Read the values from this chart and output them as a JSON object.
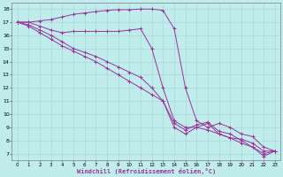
{
  "xlabel": "Windchill (Refroidissement éolien,°C)",
  "bg_color": "#c0ecec",
  "grid_color": "#a8d8d8",
  "line_color": "#993399",
  "spine_color": "#7a7a9a",
  "xlim": [
    -0.5,
    23.5
  ],
  "ylim": [
    6.5,
    18.5
  ],
  "xticks": [
    0,
    1,
    2,
    3,
    4,
    5,
    6,
    7,
    8,
    9,
    10,
    11,
    12,
    13,
    14,
    15,
    16,
    17,
    18,
    19,
    20,
    21,
    22,
    23
  ],
  "yticks": [
    7,
    8,
    9,
    10,
    11,
    12,
    13,
    14,
    15,
    16,
    17,
    18
  ],
  "lines": [
    {
      "x": [
        0,
        1,
        2,
        3,
        4,
        5,
        6,
        7,
        8,
        9,
        10,
        11,
        12,
        13,
        14,
        15,
        16,
        17,
        18,
        19,
        20,
        21,
        22,
        23
      ],
      "y": [
        17,
        17,
        17.1,
        17.2,
        17.4,
        17.6,
        17.7,
        17.8,
        17.9,
        17.95,
        17.95,
        18,
        18,
        17.9,
        16.5,
        12,
        9.5,
        9,
        9.3,
        9,
        8.5,
        8.3,
        7.5,
        7.2
      ]
    },
    {
      "x": [
        0,
        1,
        2,
        3,
        4,
        5,
        6,
        7,
        8,
        9,
        10,
        11,
        12,
        13,
        14,
        15,
        16,
        17,
        18,
        19,
        20,
        21,
        22,
        23
      ],
      "y": [
        17,
        17,
        16.7,
        16.4,
        16.2,
        16.3,
        16.3,
        16.3,
        16.3,
        16.3,
        16.4,
        16.5,
        15,
        12,
        9.5,
        9,
        9,
        8.8,
        8.5,
        8.2,
        8.1,
        7.8,
        7.2,
        7.2
      ]
    },
    {
      "x": [
        0,
        1,
        2,
        3,
        4,
        5,
        6,
        7,
        8,
        9,
        10,
        11,
        12,
        13,
        14,
        15,
        16,
        17,
        18,
        19,
        20,
        21,
        22,
        23
      ],
      "y": [
        17,
        16.8,
        16.4,
        16,
        15.5,
        15,
        14.7,
        14.4,
        14,
        13.6,
        13.2,
        12.8,
        12,
        11,
        9.3,
        8.8,
        9.2,
        9.4,
        8.7,
        8.5,
        8,
        7.5,
        7,
        7.2
      ]
    },
    {
      "x": [
        0,
        1,
        2,
        3,
        4,
        5,
        6,
        7,
        8,
        9,
        10,
        11,
        12,
        13,
        14,
        15,
        16,
        17,
        18,
        19,
        20,
        21,
        22,
        23
      ],
      "y": [
        17,
        16.7,
        16.2,
        15.7,
        15.2,
        14.8,
        14.4,
        14,
        13.5,
        13,
        12.5,
        12,
        11.5,
        11,
        9,
        8.5,
        9,
        9.3,
        8.5,
        8.2,
        7.8,
        7.5,
        6.8,
        7.2
      ]
    }
  ]
}
